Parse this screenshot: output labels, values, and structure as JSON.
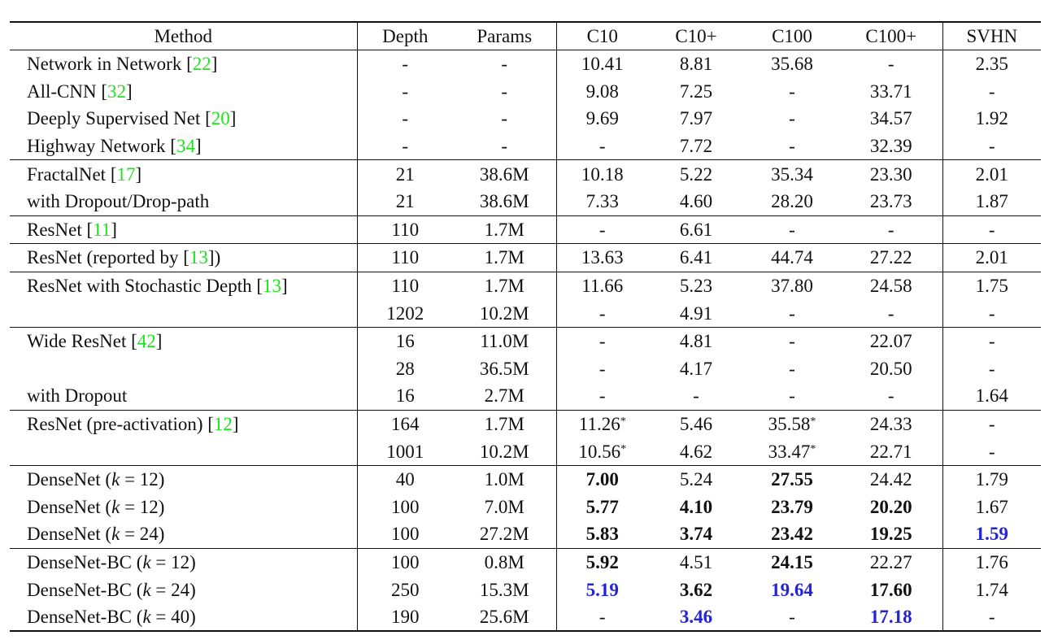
{
  "headers": [
    "Method",
    "Depth",
    "Params",
    "C10",
    "C10+",
    "C100",
    "C100+",
    "SVHN"
  ],
  "colors": {
    "citation": "#1fe31f",
    "best": "#2323d8"
  },
  "groups": [
    [
      {
        "method": "Network in Network [",
        "ref": "22",
        "method_end": "]",
        "depth": "-",
        "params": "-",
        "c10": "10.41",
        "c10p": "8.81",
        "c100": "35.68",
        "c100p": "-",
        "svhn": "2.35"
      },
      {
        "method": "All-CNN [",
        "ref": "32",
        "method_end": "]",
        "depth": "-",
        "params": "-",
        "c10": "9.08",
        "c10p": "7.25",
        "c100": "-",
        "c100p": "33.71",
        "svhn": "-"
      },
      {
        "method": "Deeply Supervised Net [",
        "ref": "20",
        "method_end": "]",
        "depth": "-",
        "params": "-",
        "c10": "9.69",
        "c10p": "7.97",
        "c100": "-",
        "c100p": "34.57",
        "svhn": "1.92"
      },
      {
        "method": "Highway Network [",
        "ref": "34",
        "method_end": "]",
        "depth": "-",
        "params": "-",
        "c10": "-",
        "c10p": "7.72",
        "c100": "-",
        "c100p": "32.39",
        "svhn": "-"
      }
    ],
    [
      {
        "method": "FractalNet [",
        "ref": "17",
        "method_end": "]",
        "depth": "21",
        "params": "38.6M",
        "c10": "10.18",
        "c10p": "5.22",
        "c100": "35.34",
        "c100p": "23.30",
        "svhn": "2.01"
      },
      {
        "method": "with Dropout/Drop-path",
        "depth": "21",
        "params": "38.6M",
        "c10": "7.33",
        "c10p": "4.60",
        "c100": "28.20",
        "c100p": "23.73",
        "svhn": "1.87"
      }
    ],
    [
      {
        "method": "ResNet [",
        "ref": "11",
        "method_end": "]",
        "depth": "110",
        "params": "1.7M",
        "c10": "-",
        "c10p": "6.61",
        "c100": "-",
        "c100p": "-",
        "svhn": "-"
      }
    ],
    [
      {
        "method": "ResNet (reported by [",
        "ref": "13",
        "method_end": "])",
        "depth": "110",
        "params": "1.7M",
        "c10": "13.63",
        "c10p": "6.41",
        "c100": "44.74",
        "c100p": "27.22",
        "svhn": "2.01"
      }
    ],
    [
      {
        "method": "ResNet with Stochastic Depth [",
        "ref": "13",
        "method_end": "]",
        "depth": "110",
        "params": "1.7M",
        "c10": "11.66",
        "c10p": "5.23",
        "c100": "37.80",
        "c100p": "24.58",
        "svhn": "1.75"
      },
      {
        "method": "",
        "depth": "1202",
        "params": "10.2M",
        "c10": "-",
        "c10p": "4.91",
        "c100": "-",
        "c100p": "-",
        "svhn": "-"
      }
    ],
    [
      {
        "method": "Wide ResNet [",
        "ref": "42",
        "method_end": "]",
        "depth": "16",
        "params": "11.0M",
        "c10": "-",
        "c10p": "4.81",
        "c100": "-",
        "c100p": "22.07",
        "svhn": "-"
      },
      {
        "method": "",
        "depth": "28",
        "params": "36.5M",
        "c10": "-",
        "c10p": "4.17",
        "c100": "-",
        "c100p": "20.50",
        "svhn": "-"
      },
      {
        "method": "with Dropout",
        "depth": "16",
        "params": "2.7M",
        "c10": "-",
        "c10p": "-",
        "c100": "-",
        "c100p": "-",
        "svhn": "1.64"
      }
    ],
    [
      {
        "method": "ResNet (pre-activation) [",
        "ref": "12",
        "method_end": "]",
        "depth": "164",
        "params": "1.7M",
        "c10": "11.26",
        "c10_sup": "*",
        "c10p": "5.46",
        "c100": "35.58",
        "c100_sup": "*",
        "c100p": "24.33",
        "svhn": "-"
      },
      {
        "method": "",
        "depth": "1001",
        "params": "10.2M",
        "c10": "10.56",
        "c10_sup": "*",
        "c10p": "4.62",
        "c100": "33.47",
        "c100_sup": "*",
        "c100p": "22.71",
        "svhn": "-"
      }
    ],
    [
      {
        "method": "DenseNet (",
        "k": "k",
        "method_end": " = 12)",
        "depth": "40",
        "params": "1.0M",
        "c10": "7.00",
        "c10_style": "b",
        "c10p": "5.24",
        "c100": "27.55",
        "c100_style": "b",
        "c100p": "24.42",
        "svhn": "1.79"
      },
      {
        "method": "DenseNet (",
        "k": "k",
        "method_end": " = 12)",
        "depth": "100",
        "params": "7.0M",
        "c10": "5.77",
        "c10_style": "b",
        "c10p": "4.10",
        "c10p_style": "b",
        "c100": "23.79",
        "c100_style": "b",
        "c100p": "20.20",
        "c100p_style": "b",
        "svhn": "1.67"
      },
      {
        "method": "DenseNet (",
        "k": "k",
        "method_end": " = 24)",
        "depth": "100",
        "params": "27.2M",
        "c10": "5.83",
        "c10_style": "b",
        "c10p": "3.74",
        "c10p_style": "b",
        "c100": "23.42",
        "c100_style": "b",
        "c100p": "19.25",
        "c100p_style": "b",
        "svhn": "1.59",
        "svhn_style": "blue"
      }
    ],
    [
      {
        "method": "DenseNet-BC (",
        "k": "k",
        "method_end": " = 12)",
        "depth": "100",
        "params": "0.8M",
        "c10": "5.92",
        "c10_style": "b",
        "c10p": "4.51",
        "c100": "24.15",
        "c100_style": "b",
        "c100p": "22.27",
        "svhn": "1.76"
      },
      {
        "method": "DenseNet-BC (",
        "k": "k",
        "method_end": " = 24)",
        "depth": "250",
        "params": "15.3M",
        "c10": "5.19",
        "c10_style": "blue",
        "c10p": "3.62",
        "c10p_style": "b",
        "c100": "19.64",
        "c100_style": "blue",
        "c100p": "17.60",
        "c100p_style": "b",
        "svhn": "1.74"
      },
      {
        "method": "DenseNet-BC (",
        "k": "k",
        "method_end": " = 40)",
        "depth": "190",
        "params": "25.6M",
        "c10": "-",
        "c10p": "3.46",
        "c10p_style": "blue",
        "c100": "-",
        "c100p": "17.18",
        "c100p_style": "blue",
        "svhn": "-"
      }
    ]
  ]
}
